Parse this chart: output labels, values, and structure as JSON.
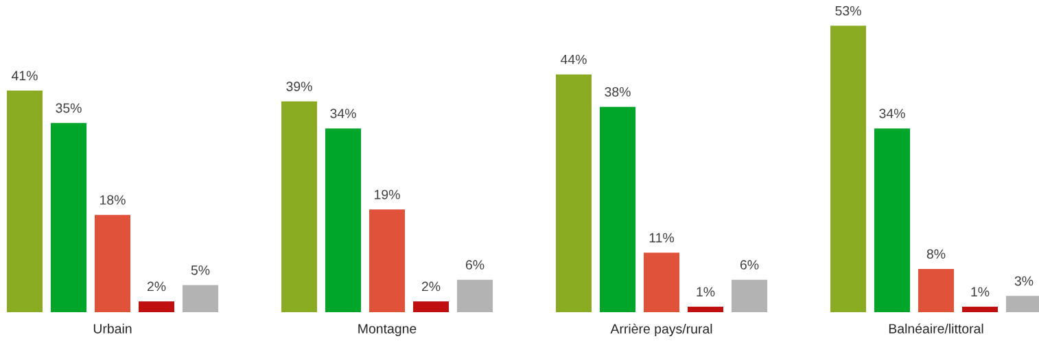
{
  "chart_data": {
    "type": "bar",
    "categories": [
      "Urbain",
      "Montagne",
      "Arrière pays/rural",
      "Balnéaire/littoral"
    ],
    "series": [
      {
        "color": "#8aac23",
        "values": [
          41,
          39,
          44,
          53
        ],
        "value_labels": [
          "41%",
          "39%",
          "44%",
          "53%"
        ]
      },
      {
        "color": "#00a629",
        "values": [
          35,
          34,
          38,
          34
        ],
        "value_labels": [
          "35%",
          "34%",
          "38%",
          "34%"
        ]
      },
      {
        "color": "#e0533a",
        "values": [
          18,
          19,
          11,
          8
        ],
        "value_labels": [
          "18%",
          "19%",
          "11%",
          "8%"
        ]
      },
      {
        "color": "#c00f0f",
        "values": [
          2,
          2,
          1,
          1
        ],
        "value_labels": [
          "2%",
          "2%",
          "1%",
          "1%"
        ]
      },
      {
        "color": "#b3b3b3",
        "values": [
          5,
          6,
          6,
          3
        ],
        "value_labels": [
          "5%",
          "6%",
          "6%",
          "3%"
        ]
      }
    ],
    "tick_labels": "x"
  }
}
